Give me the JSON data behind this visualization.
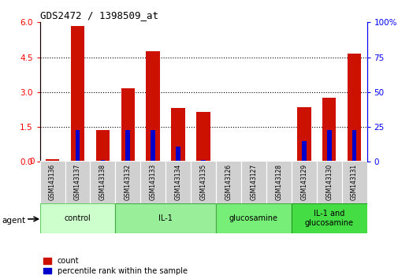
{
  "title": "GDS2472 / 1398509_at",
  "samples": [
    "GSM143136",
    "GSM143137",
    "GSM143138",
    "GSM143132",
    "GSM143133",
    "GSM143134",
    "GSM143135",
    "GSM143126",
    "GSM143127",
    "GSM143128",
    "GSM143129",
    "GSM143130",
    "GSM143131"
  ],
  "count_values": [
    0.12,
    5.85,
    1.35,
    3.15,
    4.75,
    2.3,
    2.15,
    0.03,
    0.03,
    0.03,
    2.35,
    2.75,
    4.65
  ],
  "percentile_values": [
    0.04,
    1.35,
    0.08,
    1.35,
    1.35,
    0.65,
    0.07,
    0.04,
    0.04,
    0.04,
    0.9,
    1.35,
    1.35
  ],
  "groups": [
    {
      "label": "control",
      "start": 0,
      "end": 3,
      "color": "#ccffcc",
      "border": "#66cc66"
    },
    {
      "label": "IL-1",
      "start": 3,
      "end": 7,
      "color": "#99ee99",
      "border": "#44aa44"
    },
    {
      "label": "glucosamine",
      "start": 7,
      "end": 10,
      "color": "#77ee77",
      "border": "#44aa44"
    },
    {
      "label": "IL-1 and\nglucosamine",
      "start": 10,
      "end": 13,
      "color": "#44dd44",
      "border": "#229922"
    }
  ],
  "ylim_left": [
    0,
    6
  ],
  "ylim_right": [
    0,
    100
  ],
  "yticks_left": [
    0,
    1.5,
    3.0,
    4.5,
    6
  ],
  "yticks_right": [
    0,
    25,
    50,
    75,
    100
  ],
  "bar_color_red": "#cc1100",
  "bar_color_blue": "#0000cc",
  "bg_color": "#ffffff",
  "gray_color": "#d0d0d0",
  "agent_label": "agent",
  "legend_count": "count",
  "legend_percentile": "percentile rank within the sample",
  "n_samples": 13
}
